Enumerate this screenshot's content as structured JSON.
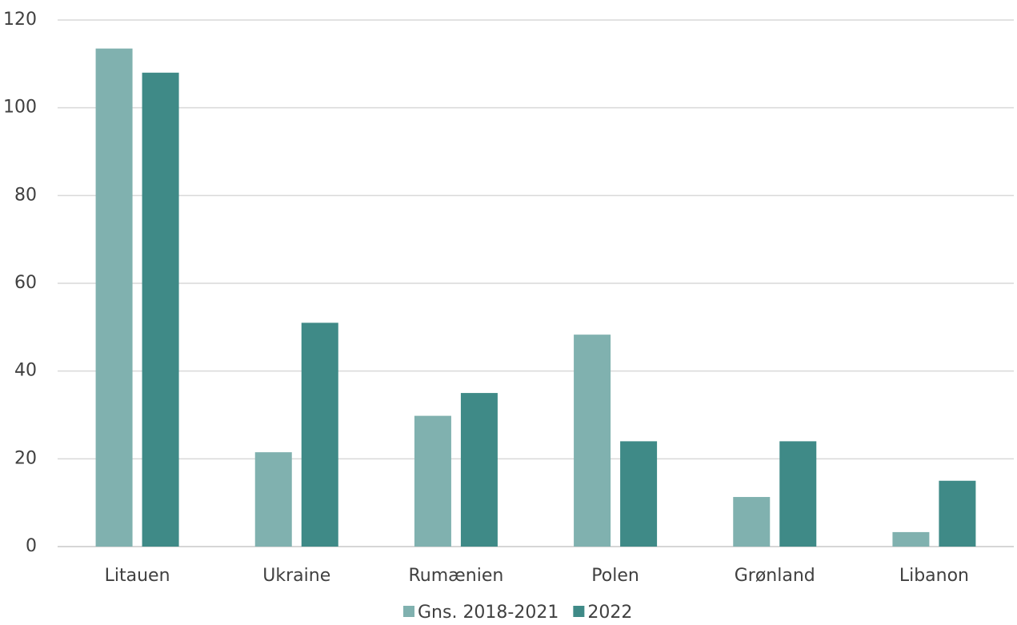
{
  "chart_data": {
    "type": "bar",
    "title": "",
    "xlabel": "",
    "ylabel": "",
    "categories": [
      "Litauen",
      "Ukraine",
      "Rumænien",
      "Polen",
      "Grønland",
      "Libanon"
    ],
    "series": [
      {
        "name": "Gns. 2018-2021",
        "color": "#80b1af",
        "values": [
          113.5,
          21.5,
          29.8,
          48.3,
          11.3,
          3.3
        ]
      },
      {
        "name": "2022",
        "color": "#3f8a87",
        "values": [
          108,
          51,
          35,
          24,
          24,
          15
        ]
      }
    ],
    "ylim": [
      0,
      120
    ],
    "yticks": [
      0,
      20,
      40,
      60,
      80,
      100,
      120
    ],
    "grid": true,
    "legend_position": "bottom"
  }
}
